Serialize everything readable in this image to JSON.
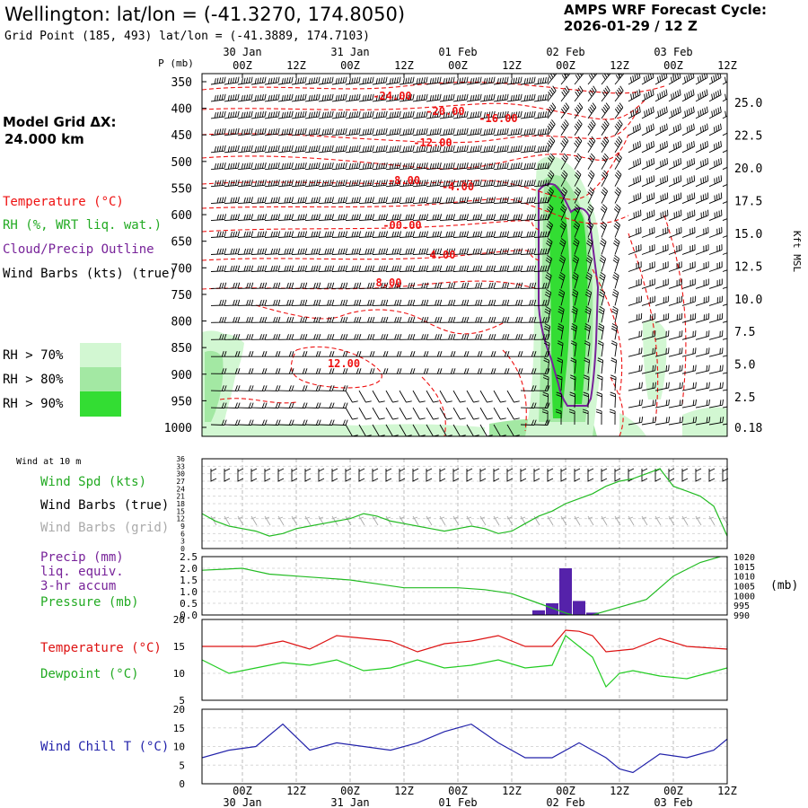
{
  "header": {
    "title": "Wellington:  lat/lon = (-41.3270, 174.8050)",
    "subtitle": "Grid Point (185, 493) lat/lon = (-41.3889, 174.7103)",
    "cycle_label": "AMPS WRF Forecast Cycle:",
    "cycle_value": "2026-01-29 / 12  Z"
  },
  "grid": {
    "label": "Model Grid ΔX:",
    "value": "24.000 km"
  },
  "legend": {
    "temperature": "Temperature (°C)",
    "rh": "RH (%, WRT liq. wat.)",
    "cloud": "Cloud/Precip Outline",
    "wind": "Wind Barbs (kts) (true)",
    "rh70": "RH > 70%",
    "rh80": "RH > 80%",
    "rh90": "RH > 90%"
  },
  "colors": {
    "temp": "#ee1111",
    "rh70": "#d2f7d2",
    "rh80": "#a3e8a3",
    "rh90": "#33dd33",
    "cloud": "#772299",
    "wind_spd": "#22bb22",
    "wind_grid": "#aaaaaa",
    "precip": "#5522aa",
    "pressure": "#22bb22",
    "dewpoint": "#22cc22",
    "temperature": "#dd1111",
    "windchill": "#2222aa",
    "grid": "#bbbbbb"
  },
  "time_axis": {
    "tick_labels": [
      "00Z",
      "12Z",
      "00Z",
      "12Z",
      "00Z",
      "12Z",
      "00Z",
      "12Z",
      "00Z",
      "12Z"
    ],
    "day_labels": [
      "30 Jan",
      "31 Jan",
      "01 Feb",
      "02 Feb",
      "03 Feb"
    ]
  },
  "upper_axis": {
    "pressure_label": "P (mb)",
    "pressure_ticks": [
      "350",
      "400",
      "450",
      "500",
      "550",
      "600",
      "650",
      "700",
      "750",
      "800",
      "850",
      "900",
      "950",
      "1000"
    ],
    "height_ticks": [
      "25.0",
      "22.5",
      "20.0",
      "17.5",
      "15.0",
      "12.5",
      "10.0",
      "7.5",
      "5.0",
      "2.5",
      "0.18"
    ],
    "height_label": "Kft MSL",
    "temp_labels": [
      "-24.00",
      "-20.00",
      "-16.00",
      "-12.00",
      "-8.00",
      "-4.00",
      "-00.00",
      "4.00",
      "8.00",
      "12.00"
    ]
  },
  "panels": {
    "wind": {
      "title": "Wind at 10 m",
      "spd_label": "Wind Spd (kts)",
      "barb_true_label": "Wind Barbs (true)",
      "barb_grid_label": "Wind Barbs (grid)",
      "yticks": [
        "36",
        "33",
        "30",
        "27",
        "24",
        "21",
        "18",
        "15",
        "12",
        "9",
        "6",
        "3",
        "0"
      ]
    },
    "precip": {
      "label1": "Precip (mm)",
      "label2": "liq. equiv.",
      "label3": "3-hr accum",
      "pressure_label": "Pressure (mb)",
      "yticks_left": [
        "2.5",
        "2.0",
        "1.5",
        "1.0",
        "0.5",
        "0.0"
      ],
      "yticks_right": [
        "1020",
        "1015",
        "1010",
        "1005",
        "1000",
        "995",
        "990"
      ],
      "unit_right": "(mb)"
    },
    "temp": {
      "temp_label": "Temperature (°C)",
      "dew_label": "Dewpoint (°C)",
      "yticks": [
        "20",
        "15",
        "10",
        "5"
      ]
    },
    "chill": {
      "label": "Wind Chill T (°C)",
      "yticks": [
        "20",
        "15",
        "10",
        "5",
        "0"
      ]
    }
  },
  "chart_data": [
    {
      "type": "line",
      "name": "upper-air time-height section",
      "x_hours": [
        0,
        12,
        24,
        36,
        48,
        60,
        72,
        84,
        96,
        108
      ],
      "x_tick_labels": [
        "00Z",
        "12Z",
        "00Z",
        "12Z",
        "00Z",
        "12Z",
        "00Z",
        "12Z",
        "00Z",
        "12Z"
      ],
      "xlim": [
        -9,
        108
      ],
      "y_pressure_mb": [
        350,
        400,
        450,
        500,
        550,
        600,
        650,
        700,
        750,
        800,
        850,
        900,
        950,
        1000
      ],
      "y_height_kft": [
        25.0,
        22.5,
        20.0,
        17.5,
        15.0,
        12.5,
        10.0,
        7.5,
        5.0,
        2.5,
        0.18
      ],
      "temperature_contour_labels_c": [
        -24,
        -20,
        -16,
        -12,
        -8,
        -4,
        0,
        4,
        8,
        12
      ]
    },
    {
      "type": "line",
      "name": "wind speed 10 m",
      "ylabel": "Wind Spd (kts)",
      "ylim": [
        0,
        36
      ],
      "x_hours": [
        -9,
        -6,
        -3,
        0,
        3,
        6,
        9,
        12,
        15,
        18,
        21,
        24,
        27,
        30,
        33,
        36,
        39,
        42,
        45,
        48,
        51,
        54,
        57,
        60,
        63,
        66,
        69,
        72,
        75,
        78,
        81,
        84,
        87,
        90,
        93,
        96,
        99,
        102,
        105,
        108
      ],
      "values": [
        14,
        11,
        9,
        8,
        7,
        5,
        6,
        8,
        9,
        10,
        11,
        12,
        14,
        13,
        11,
        10,
        9,
        8,
        7,
        8,
        9,
        8,
        6,
        7,
        10,
        13,
        15,
        18,
        20,
        22,
        25,
        27,
        28,
        30,
        32,
        25,
        23,
        21,
        17,
        5
      ]
    },
    {
      "type": "bar",
      "name": "precip 3-hr accum",
      "ylabel": "Precip (mm)",
      "ylim": [
        0,
        2.5
      ],
      "x_hours": [
        66,
        69,
        72,
        75,
        78
      ],
      "values": [
        0.2,
        0.5,
        2.0,
        0.6,
        0.1
      ]
    },
    {
      "type": "line",
      "name": "pressure",
      "ylabel": "Pressure (mb)",
      "ylim": [
        990,
        1020
      ],
      "x_hours": [
        -9,
        0,
        6,
        12,
        18,
        24,
        30,
        36,
        42,
        48,
        54,
        60,
        66,
        72,
        75,
        78,
        84,
        90,
        96,
        102,
        108
      ],
      "values": [
        1013,
        1014,
        1011,
        1010,
        1009,
        1008,
        1006,
        1004,
        1004,
        1004,
        1003,
        1001,
        996,
        991,
        989,
        990,
        994,
        998,
        1010,
        1017,
        1021
      ]
    },
    {
      "type": "line",
      "name": "temperature",
      "ylabel": "Temperature (°C)",
      "ylim": [
        5,
        20
      ],
      "x_hours": [
        -9,
        -3,
        3,
        9,
        15,
        21,
        27,
        33,
        39,
        45,
        51,
        57,
        63,
        69,
        72,
        75,
        78,
        81,
        87,
        93,
        99,
        108
      ],
      "values": [
        15,
        15,
        15,
        16,
        14.5,
        17,
        16.5,
        16,
        14,
        15.5,
        16,
        17,
        15,
        15,
        18,
        17.8,
        17,
        14,
        14.5,
        16.5,
        15,
        14.5
      ]
    },
    {
      "type": "line",
      "name": "dewpoint",
      "ylabel": "Dewpoint (°C)",
      "ylim": [
        5,
        20
      ],
      "x_hours": [
        -9,
        -3,
        3,
        9,
        15,
        21,
        27,
        33,
        39,
        45,
        51,
        57,
        63,
        69,
        72,
        75,
        78,
        81,
        84,
        87,
        93,
        99,
        108
      ],
      "values": [
        12.5,
        10,
        11,
        12,
        11.5,
        12.5,
        10.5,
        11,
        12.5,
        11,
        11.5,
        12.5,
        11,
        11.5,
        17,
        15,
        13,
        7.5,
        10,
        10.5,
        9.5,
        9,
        11
      ]
    },
    {
      "type": "line",
      "name": "wind chill",
      "ylabel": "Wind Chill T (°C)",
      "ylim": [
        0,
        20
      ],
      "x_hours": [
        -9,
        -3,
        3,
        9,
        15,
        21,
        27,
        33,
        39,
        45,
        51,
        57,
        63,
        69,
        75,
        81,
        84,
        87,
        93,
        99,
        105,
        108
      ],
      "values": [
        7,
        9,
        10,
        16,
        9,
        11,
        10,
        9,
        11,
        14,
        16,
        11,
        7,
        7,
        11,
        7,
        4,
        3,
        8,
        7,
        9,
        12
      ]
    }
  ]
}
